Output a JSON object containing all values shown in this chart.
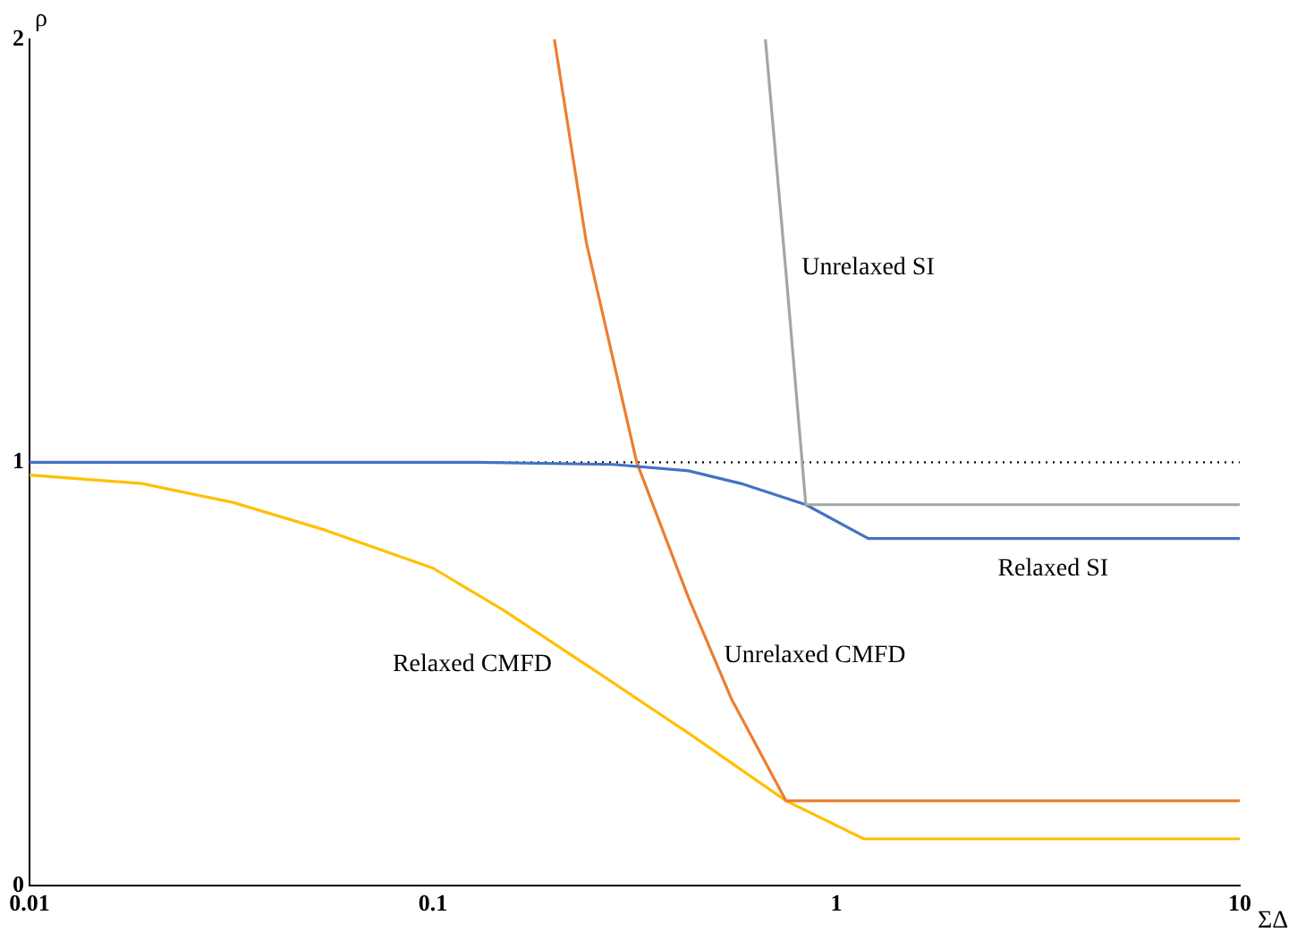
{
  "chart_data": {
    "type": "line",
    "xlabel": "ΣΔ",
    "ylabel": "ρ",
    "log": "x",
    "xlim": [
      0.01,
      10
    ],
    "xticks": [
      0.01,
      0.1,
      1,
      10
    ],
    "ylim": [
      0,
      2
    ],
    "yticks": [
      0,
      1,
      2
    ],
    "grid": false,
    "legend": false,
    "marker": "none",
    "ref_lines": [
      {
        "axis": "y",
        "value": 1,
        "color": "#000000",
        "line_style": "dotted"
      }
    ],
    "series": [
      {
        "name": "Unrelaxed SI",
        "color": "#a5a5a5",
        "x": [
          0.667,
          0.75,
          0.84,
          10
        ],
        "values": [
          2,
          1.45,
          0.9,
          0.9
        ]
      },
      {
        "name": "Relaxed SI",
        "color": "#4472c4",
        "x": [
          0.01,
          0.13,
          0.28,
          0.43,
          0.58,
          0.84,
          1.2,
          10
        ],
        "values": [
          1,
          1,
          0.995,
          0.98,
          0.95,
          0.9,
          0.82,
          0.82
        ]
      },
      {
        "name": "Unrelaxed CMFD",
        "color": "#ed7d31",
        "x": [
          0.2,
          0.24,
          0.32,
          0.43,
          0.55,
          0.75,
          10
        ],
        "values": [
          2,
          1.52,
          1,
          0.68,
          0.44,
          0.2,
          0.2
        ]
      },
      {
        "name": "Relaxed CMFD",
        "color": "#ffc000",
        "x": [
          0.01,
          0.019,
          0.032,
          0.054,
          0.1,
          0.15,
          0.25,
          0.43,
          0.75,
          1.17,
          10
        ],
        "values": [
          0.97,
          0.95,
          0.905,
          0.84,
          0.75,
          0.65,
          0.51,
          0.36,
          0.2,
          0.11,
          0.11
        ]
      }
    ]
  }
}
